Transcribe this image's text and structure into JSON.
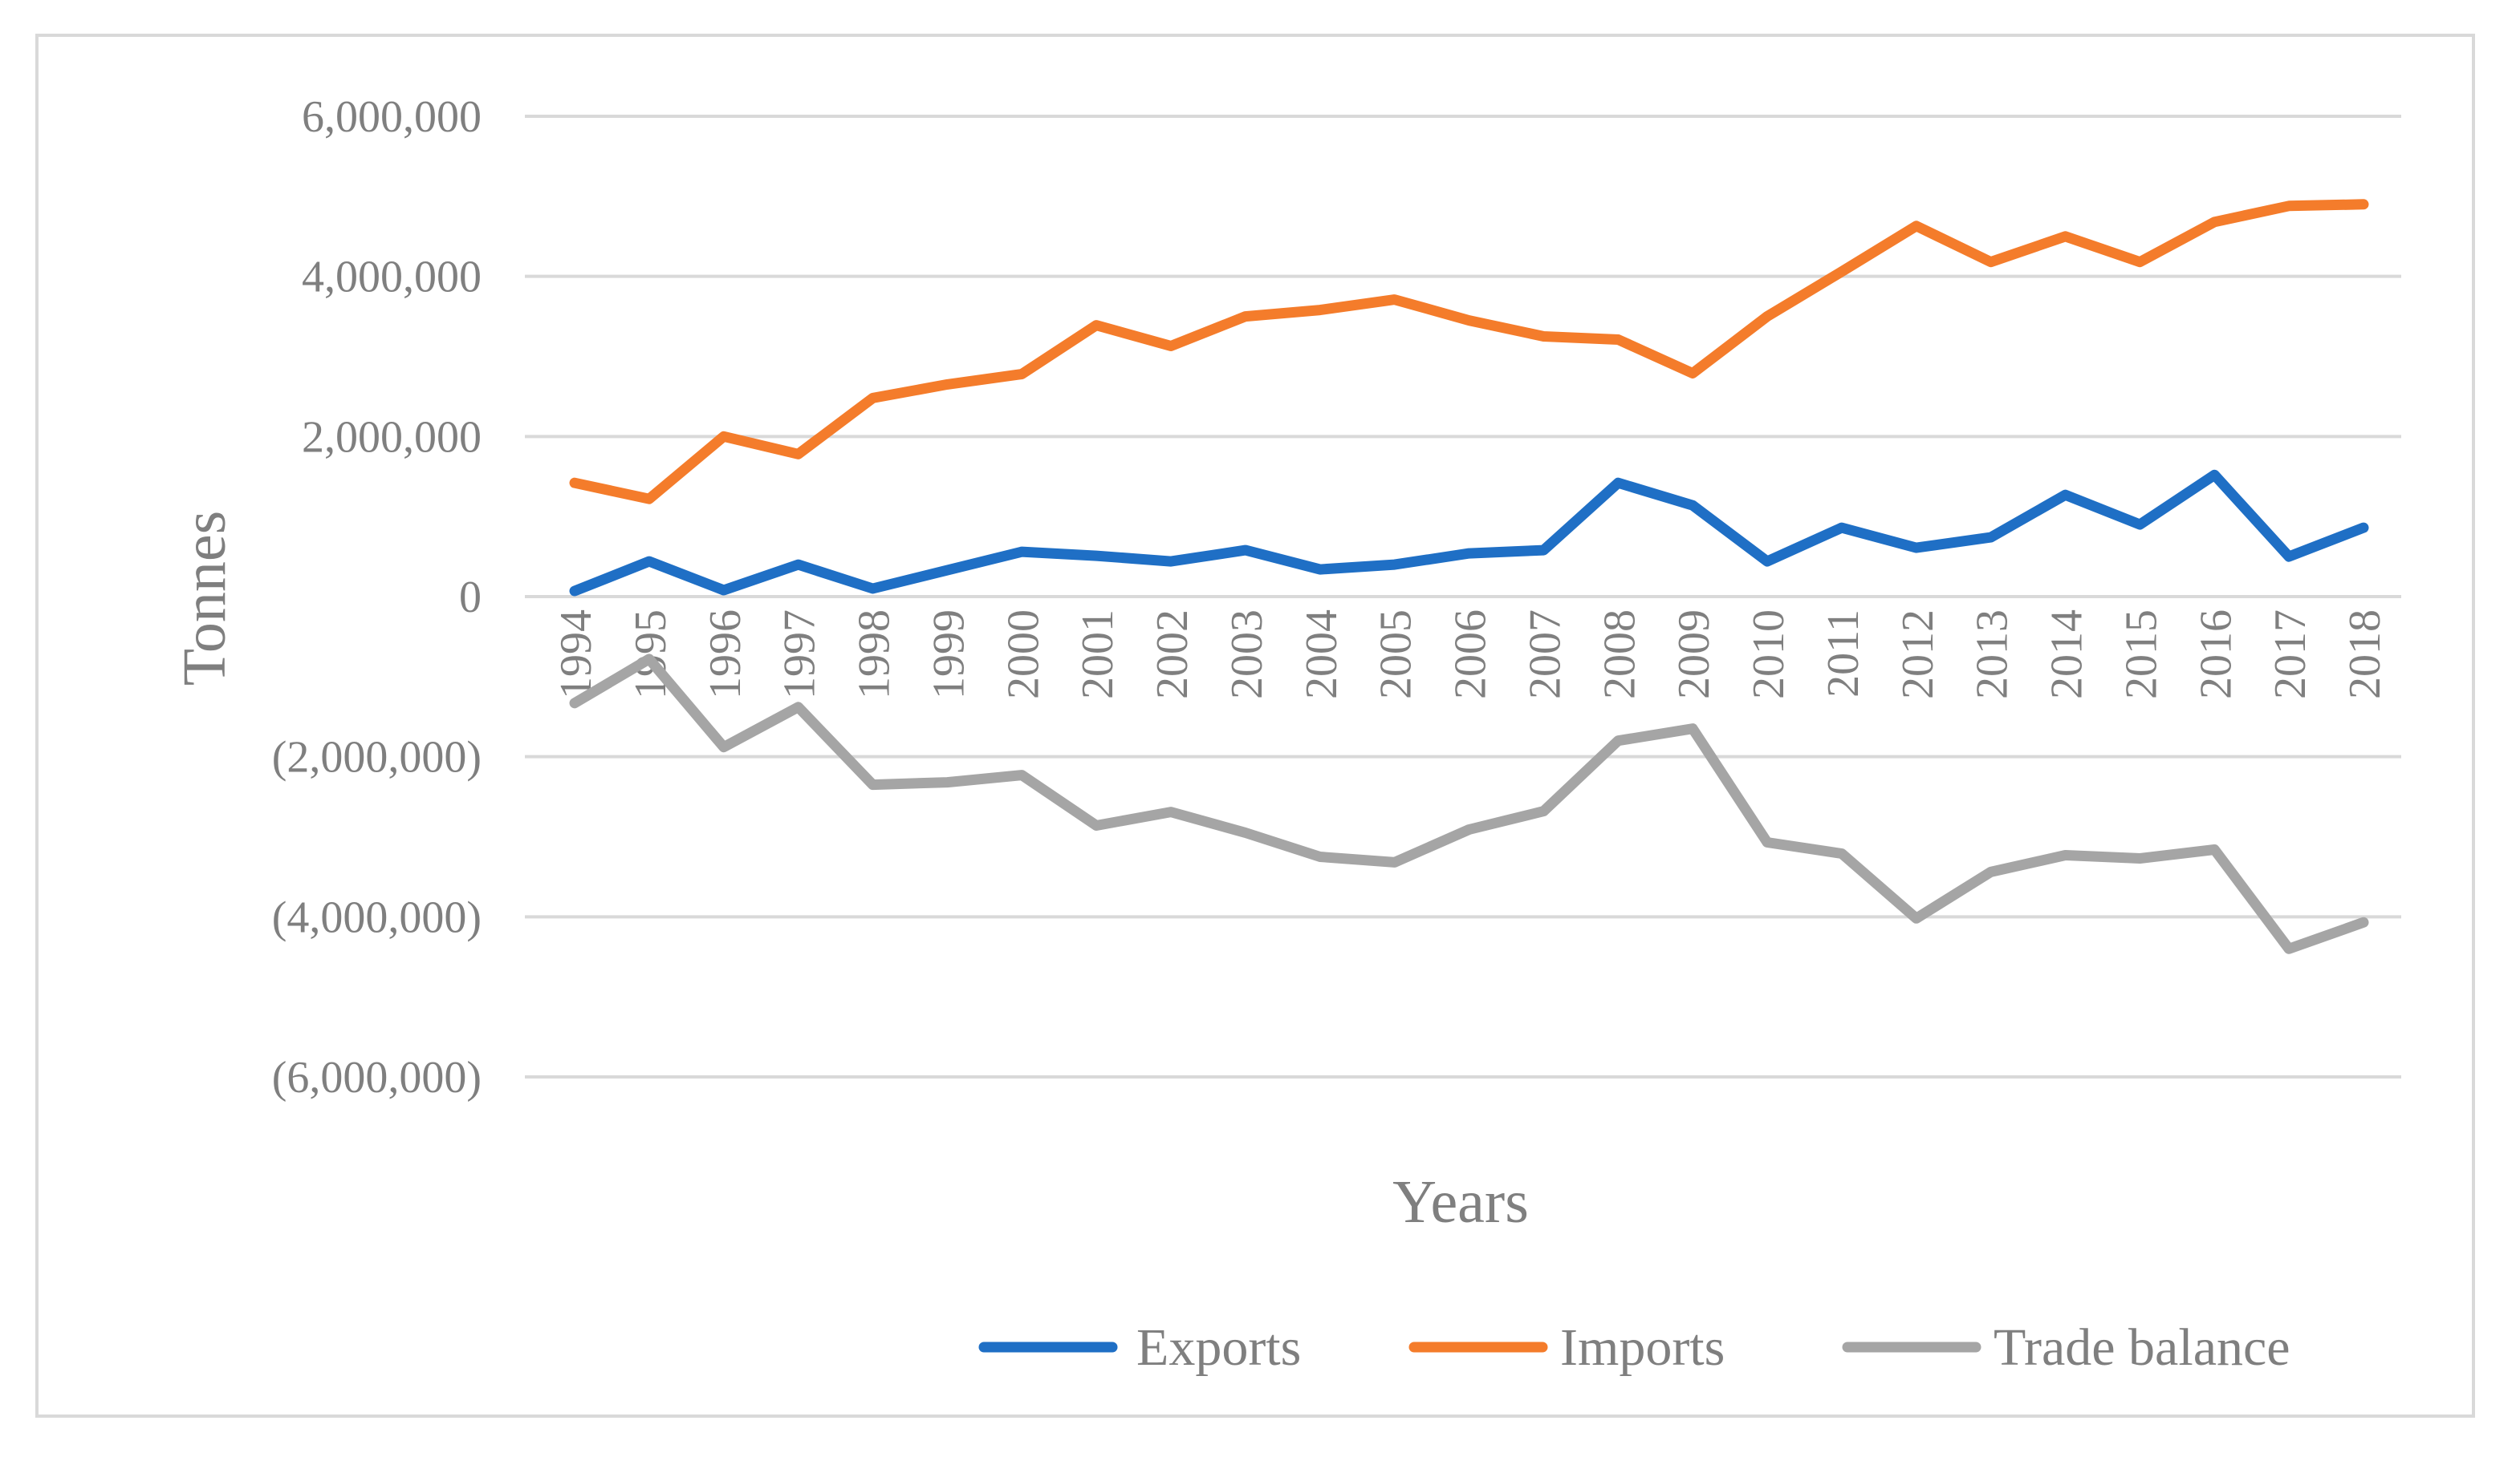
{
  "chart_data": {
    "type": "line",
    "title": "",
    "xlabel": "Years",
    "ylabel": "Tonnes",
    "ylim": [
      -6000000,
      6000000
    ],
    "y_ticks": [
      6000000,
      4000000,
      2000000,
      0,
      -2000000,
      -4000000,
      -6000000
    ],
    "y_tick_labels": [
      "6,000,000",
      "4,000,000",
      "2,000,000",
      "0",
      "(2,000,000)",
      "(4,000,000)",
      "(6,000,000)"
    ],
    "grid": true,
    "legend_position": "bottom",
    "categories": [
      "1994",
      "1995",
      "1996",
      "1997",
      "1998",
      "1999",
      "2000",
      "2001",
      "2002",
      "2003",
      "2004",
      "2005",
      "2006",
      "2007",
      "2008",
      "2009",
      "2010",
      "2011",
      "2012",
      "2013",
      "2014",
      "2015",
      "2016",
      "2017",
      "2018"
    ],
    "series": [
      {
        "name": "Exports",
        "color": "#1f6fc5",
        "values": [
          70000,
          440000,
          80000,
          400000,
          100000,
          330000,
          560000,
          510000,
          440000,
          580000,
          340000,
          400000,
          540000,
          580000,
          1420000,
          1140000,
          440000,
          860000,
          610000,
          740000,
          1270000,
          900000,
          1520000,
          500000,
          860000
        ]
      },
      {
        "name": "Imports",
        "color": "#f47c2b",
        "values": [
          1420000,
          1220000,
          2000000,
          1780000,
          2480000,
          2650000,
          2780000,
          3390000,
          3130000,
          3500000,
          3580000,
          3710000,
          3450000,
          3250000,
          3210000,
          2790000,
          3500000,
          4060000,
          4630000,
          4180000,
          4500000,
          4180000,
          4680000,
          4880000,
          4900000
        ]
      },
      {
        "name": "Trade balance",
        "color": "#a5a5a5",
        "values": [
          -1330000,
          -780000,
          -1880000,
          -1380000,
          -2350000,
          -2320000,
          -2230000,
          -2860000,
          -2690000,
          -2950000,
          -3250000,
          -3320000,
          -2910000,
          -2680000,
          -1800000,
          -1650000,
          -3070000,
          -3210000,
          -4020000,
          -3440000,
          -3230000,
          -3270000,
          -3160000,
          -4400000,
          -4070000
        ]
      }
    ]
  }
}
